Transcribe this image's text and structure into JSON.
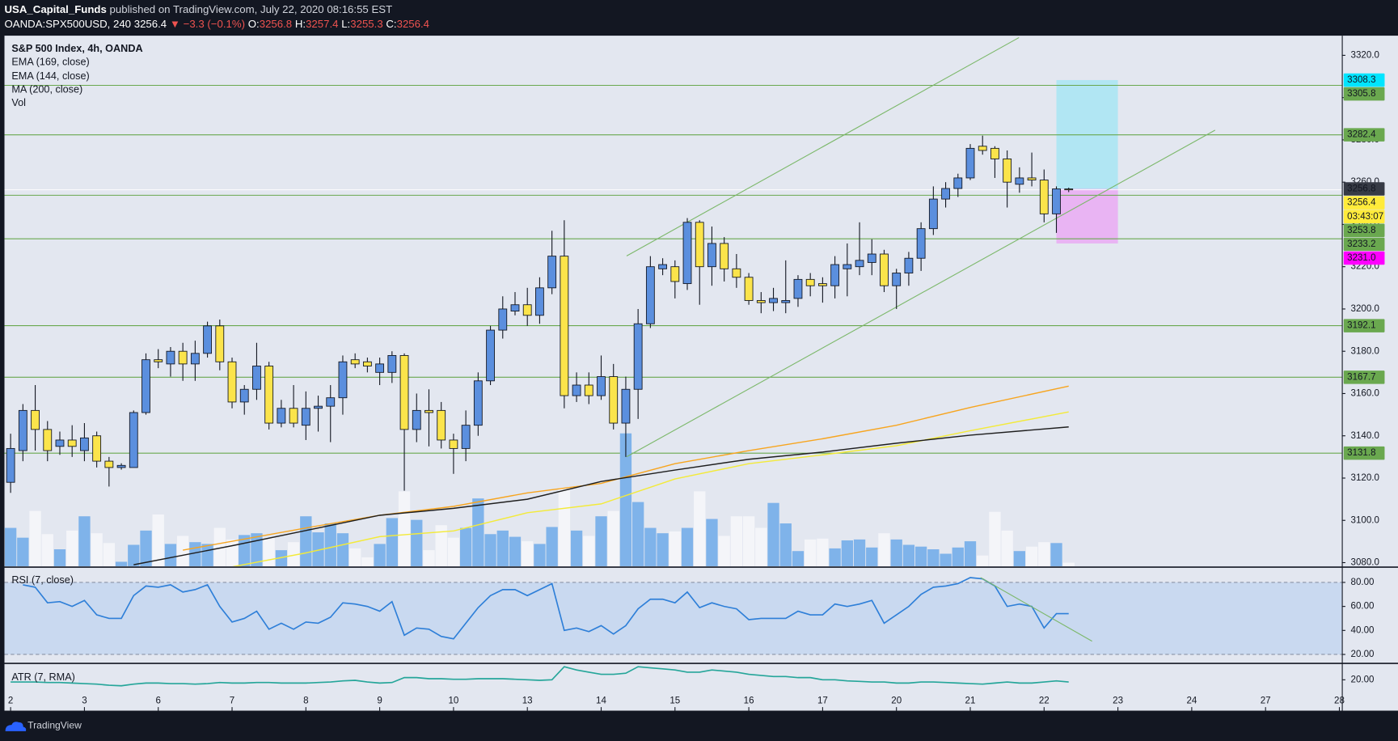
{
  "header": {
    "author": "USA_Capital_Funds",
    "published": "published on TradingView.com, July 22, 2020 08:16:55 EST",
    "symbol": "OANDA:SPX500USD, 240",
    "last": "3256.4",
    "change": "▼ −3.3 (−0.1%)",
    "open_label": "O:",
    "open": "3256.8",
    "high_label": "H:",
    "high": "3257.4",
    "low_label": "L:",
    "low": "3255.3",
    "close_label": "C:",
    "close": "3256.4"
  },
  "footer": {
    "brand": "TradingView"
  },
  "chart_data": [
    {
      "type": "candlestick",
      "title": "S&P 500 Index, 4h, OANDA",
      "open": [
        3118,
        3133,
        3152,
        3143,
        3135,
        3138,
        3133,
        3140,
        3128,
        3125,
        3125,
        3151,
        3176,
        3174,
        3180,
        3174,
        3179,
        3192,
        3175,
        3156,
        3162,
        3173,
        3146,
        3153,
        3145,
        3153,
        3154,
        3158,
        3176,
        3175,
        3170,
        3170,
        3178,
        3143,
        3152,
        3152,
        3138,
        3134,
        3145,
        3166,
        3190,
        3199,
        3202,
        3197,
        3210,
        3225,
        3159,
        3164,
        3159,
        3168,
        3146,
        3162,
        3193,
        3219,
        3220,
        3212,
        3241,
        3220,
        3231,
        3219,
        3215,
        3204,
        3203,
        3203,
        3205,
        3214,
        3212,
        3211,
        3219,
        3220,
        3222,
        3226,
        3211,
        3217,
        3224,
        3238,
        3252,
        3257,
        3262,
        3277,
        3276,
        3271,
        3259,
        3262,
        3261,
        3245,
        3256.8
      ],
      "high": [
        3141,
        3155,
        3164,
        3147,
        3142,
        3145,
        3146,
        3142,
        3130,
        3127,
        3152,
        3179,
        3181,
        3182,
        3184,
        3185,
        3194,
        3195,
        3177,
        3164,
        3184,
        3175,
        3157,
        3164,
        3161,
        3159,
        3164,
        3178,
        3179,
        3177,
        3177,
        3180,
        3179,
        3160,
        3162,
        3156,
        3141,
        3152,
        3170,
        3192,
        3206,
        3208,
        3210,
        3215,
        3237,
        3242,
        3170,
        3170,
        3178,
        3174,
        3168,
        3200,
        3225,
        3224,
        3223,
        3243,
        3242,
        3239,
        3234,
        3226,
        3217,
        3208,
        3210,
        3223,
        3216,
        3217,
        3215,
        3225,
        3231,
        3241,
        3233,
        3228,
        3219,
        3227,
        3241,
        3258,
        3260,
        3264,
        3278,
        3282,
        3277,
        3275,
        3267,
        3274,
        3266,
        3258,
        3257.4
      ],
      "low": [
        3113,
        3128,
        3133,
        3128,
        3131,
        3130,
        3128,
        3125,
        3116,
        3124,
        3125,
        3150,
        3172,
        3168,
        3166,
        3166,
        3177,
        3171,
        3153,
        3150,
        3157,
        3143,
        3144,
        3144,
        3138,
        3142,
        3137,
        3150,
        3172,
        3170,
        3164,
        3165,
        3114,
        3137,
        3135,
        3134,
        3122,
        3128,
        3140,
        3164,
        3186,
        3197,
        3192,
        3193,
        3207,
        3153,
        3156,
        3155,
        3157,
        3143,
        3130,
        3148,
        3191,
        3216,
        3205,
        3209,
        3202,
        3211,
        3213,
        3210,
        3202,
        3198,
        3199,
        3198,
        3201,
        3206,
        3203,
        3205,
        3206,
        3216,
        3216,
        3208,
        3200,
        3211,
        3218,
        3235,
        3248,
        3253,
        3261,
        3273,
        3262,
        3248,
        3255,
        3258,
        3241,
        3236,
        3255.3
      ],
      "close": [
        3134,
        3152,
        3143,
        3133,
        3138,
        3135,
        3139,
        3128,
        3125,
        3126,
        3151,
        3176,
        3175,
        3180,
        3174,
        3179,
        3192,
        3175,
        3156,
        3162,
        3173,
        3146,
        3153,
        3146,
        3153,
        3154,
        3158,
        3175,
        3174,
        3173,
        3174,
        3178,
        3143,
        3152,
        3151,
        3138,
        3134,
        3145,
        3166,
        3190,
        3200,
        3202,
        3197,
        3210,
        3225,
        3159,
        3164,
        3159,
        3168,
        3146,
        3162,
        3193,
        3220,
        3221,
        3213,
        3241,
        3220,
        3231,
        3219,
        3215,
        3204,
        3203,
        3205,
        3204,
        3214,
        3211,
        3211,
        3221,
        3221,
        3223,
        3226,
        3211,
        3217,
        3224,
        3238,
        3252,
        3257,
        3262,
        3276,
        3275,
        3271,
        3260,
        3262,
        3261,
        3245,
        3256.8,
        3256.4
      ],
      "up_color": "#5b8fde",
      "down_color": "#fbe44b",
      "volume": {
        "name": "Vol",
        "values": [
          43,
          32,
          62,
          36,
          19,
          40,
          56,
          37,
          26,
          5,
          24,
          40,
          58,
          25,
          34,
          27,
          25,
          43,
          30,
          35,
          37,
          32,
          18,
          27,
          56,
          38,
          48,
          37,
          20,
          10,
          25,
          54,
          84,
          52,
          18,
          46,
          32,
          43,
          76,
          36,
          40,
          33,
          28,
          25,
          44,
          88,
          40,
          34,
          56,
          62,
          149,
          72,
          43,
          37,
          39,
          43,
          84,
          53,
          34,
          56,
          56,
          43,
          71,
          48,
          17,
          30,
          31,
          20,
          29,
          30,
          21,
          37,
          30,
          24,
          22,
          19,
          14,
          21,
          28,
          12,
          61,
          40,
          17,
          22,
          27,
          26,
          4
        ],
        "up_color": "#7fb3ea",
        "down_color": "#f4f5f9",
        "lim": [
          0,
          150
        ]
      },
      "series": [
        {
          "name": "EMA (169, close)",
          "color": "#f7a51f",
          "x": [
            14,
            24,
            30,
            36,
            42,
            48,
            54,
            60,
            66,
            72,
            78,
            86
          ],
          "values": [
            3085.9,
            3096.4,
            3102.4,
            3106.6,
            3113,
            3117.5,
            3126.8,
            3133,
            3138.6,
            3145,
            3153.4,
            3163.5
          ]
        },
        {
          "name": "EMA (144, close)",
          "color": "#f3ea3a",
          "x": [
            18,
            24,
            30,
            36,
            42,
            48,
            54,
            60,
            66,
            72,
            78,
            86
          ],
          "values": [
            3078,
            3084.6,
            3092.3,
            3095,
            3103.6,
            3107.8,
            3119.6,
            3126.8,
            3131,
            3135.3,
            3142.4,
            3151.3
          ]
        },
        {
          "name": "MA (200, close)",
          "color": "#1e1e1e",
          "x": [
            10,
            18,
            24,
            30,
            36,
            42,
            48,
            54,
            60,
            66,
            72,
            78,
            86
          ],
          "values": [
            3079,
            3088,
            3095.2,
            3102.4,
            3105.7,
            3110,
            3118.4,
            3123.8,
            3128.9,
            3132.3,
            3136.5,
            3140.3,
            3144.2
          ]
        }
      ],
      "xlim": [
        -0.5,
        108.2
      ],
      "xticks": [
        {
          "value": 0,
          "label": "2"
        },
        {
          "value": 6,
          "label": "3"
        },
        {
          "value": 12,
          "label": "6"
        },
        {
          "value": 18,
          "label": "7"
        },
        {
          "value": 24,
          "label": "8"
        },
        {
          "value": 30,
          "label": "9"
        },
        {
          "value": 36,
          "label": "10"
        },
        {
          "value": 42,
          "label": "13"
        },
        {
          "value": 48,
          "label": "14"
        },
        {
          "value": 54,
          "label": "15"
        },
        {
          "value": 60,
          "label": "16"
        },
        {
          "value": 66,
          "label": "17"
        },
        {
          "value": 72,
          "label": "20"
        },
        {
          "value": 78,
          "label": "21"
        },
        {
          "value": 84,
          "label": "22"
        },
        {
          "value": 90,
          "label": "23"
        },
        {
          "value": 96,
          "label": "24"
        },
        {
          "value": 102,
          "label": "27"
        },
        {
          "value": 108,
          "label": "28"
        }
      ],
      "ylim": [
        3078.3,
        3329.3
      ],
      "yticks": [
        {
          "value": 3080,
          "label": "3080.0"
        },
        {
          "value": 3100,
          "label": "3100.0"
        },
        {
          "value": 3120,
          "label": "3120.0"
        },
        {
          "value": 3140,
          "label": "3140.0"
        },
        {
          "value": 3160,
          "label": "3160.0"
        },
        {
          "value": 3180,
          "label": "3180.0"
        },
        {
          "value": 3200,
          "label": "3200.0"
        },
        {
          "value": 3220,
          "label": "3220.0"
        },
        {
          "value": 3240,
          "label": "3240.0"
        },
        {
          "value": 3260,
          "label": "3260.0"
        },
        {
          "value": 3280,
          "label": "3280.0"
        },
        {
          "value": 3300,
          "label": "3300.0"
        },
        {
          "value": 3320,
          "label": "3320.0"
        }
      ],
      "levels": {
        "color": "#6aa84f",
        "values": [
          3305.8,
          3282.4,
          3253.8,
          3233.2,
          3192.1,
          3167.7,
          3131.8
        ]
      },
      "position": {
        "x": [
          85,
          90
        ],
        "target": 3308.3,
        "entry": 3256.8,
        "stop": {
          "value": 3231,
          "label": "3231.0"
        },
        "target_color": "#00e5ff",
        "stop_color": "#ff00ff",
        "entry_color": "#363a45"
      },
      "last": {
        "value": 3256.4,
        "color": "#ffeb3b",
        "countdown": "03:43:07"
      },
      "drawings": {
        "color": "#7cb86a",
        "lines": [
          {
            "x": [
              50.07,
              81.96
            ],
            "y": [
              3225.1,
              3328.4
            ]
          },
          {
            "x": [
              50.07,
              97.9
            ],
            "y": [
              3130.1,
              3284.6
            ]
          }
        ]
      }
    },
    {
      "type": "line",
      "title": "RSI (7, close)",
      "color": "#2e7fd8",
      "values": [
        null,
        78,
        76,
        63,
        64,
        60,
        65,
        53,
        50,
        50,
        69,
        77,
        76,
        78,
        72,
        74,
        78,
        60,
        47,
        50,
        56,
        41,
        46,
        41,
        47,
        46,
        51,
        63,
        62,
        60,
        56,
        64,
        36,
        42,
        41,
        35,
        33,
        46,
        59,
        69,
        74,
        74,
        69,
        74,
        79,
        40,
        42,
        39,
        44,
        37,
        44,
        58,
        66,
        66,
        63,
        72,
        59,
        63,
        60,
        58,
        49,
        50,
        50,
        50,
        56,
        53,
        53,
        62,
        60,
        62,
        65,
        46,
        53,
        60,
        70,
        76,
        77,
        79,
        84,
        83,
        77,
        60,
        62,
        60,
        42,
        54,
        54
      ],
      "ylim": [
        13.25,
        92
      ],
      "yticks": [
        {
          "value": 80,
          "label": "80.00"
        },
        {
          "value": 60,
          "label": "60.00"
        },
        {
          "value": 40,
          "label": "40.00"
        },
        {
          "value": 20,
          "label": "20.00"
        }
      ],
      "band": [
        20,
        80
      ],
      "band_color": "#c9d9f0",
      "drawings": {
        "color": "#7cb86a",
        "lines": [
          {
            "x": [
              78.84,
              87.9
            ],
            "y": [
              84,
              31
            ]
          }
        ]
      }
    },
    {
      "type": "line",
      "title": "ATR (7, RMA)",
      "color": "#26a69a",
      "values": [
        18,
        18,
        18,
        17.5,
        17.5,
        17,
        16.5,
        16,
        15,
        14.5,
        16,
        17,
        17,
        16.5,
        16.5,
        16,
        16.5,
        17.5,
        17,
        17,
        17.5,
        17.5,
        17,
        17,
        17,
        17.5,
        18,
        19,
        19.5,
        18,
        17,
        17.5,
        22,
        22,
        21,
        21,
        20.5,
        20.5,
        21,
        21,
        21,
        20.5,
        20,
        19.5,
        20,
        32,
        29,
        27,
        25,
        25,
        26,
        32,
        31,
        30,
        29,
        27,
        27,
        29,
        28,
        27,
        25,
        24,
        23,
        23,
        22,
        22,
        20,
        20,
        19,
        18.5,
        18,
        18,
        17,
        17,
        18,
        18,
        17.5,
        17,
        16.5,
        16,
        17,
        18,
        17,
        17,
        18,
        19,
        18
      ],
      "ylim": [
        -6.7,
        34.2
      ],
      "yticks": [
        {
          "value": 20,
          "label": "20.00"
        }
      ]
    }
  ]
}
